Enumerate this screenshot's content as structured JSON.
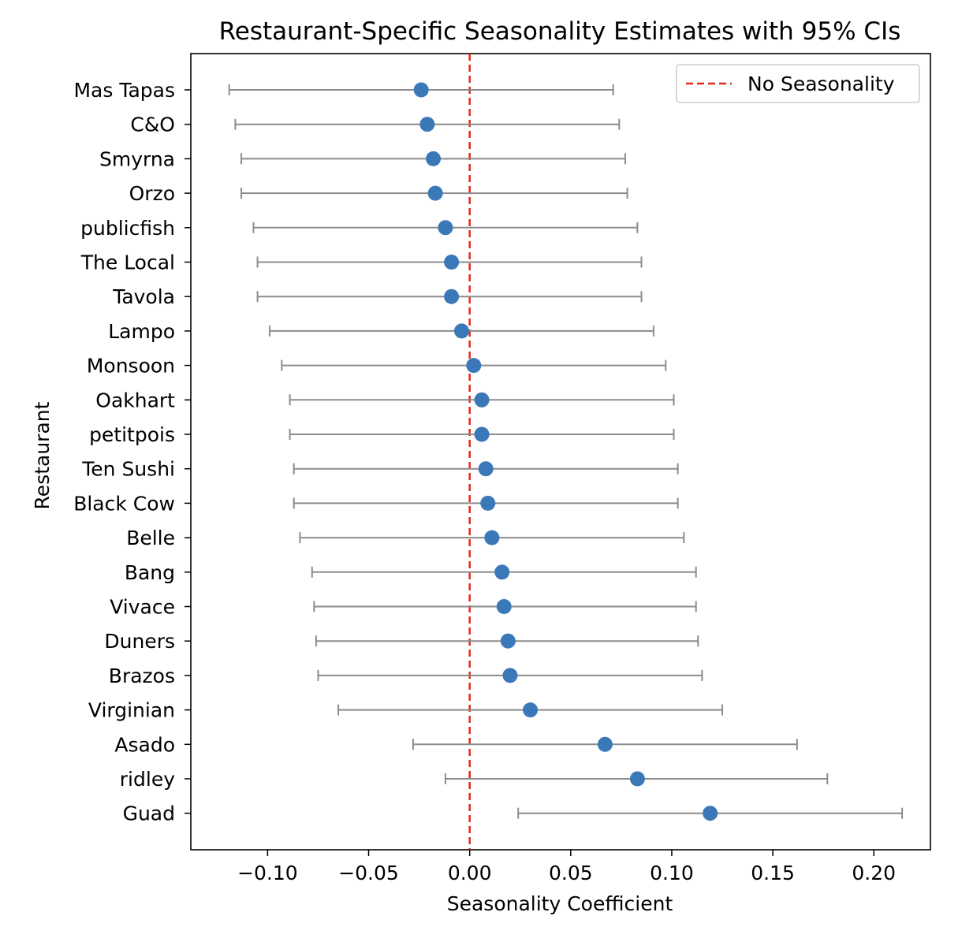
{
  "chart_data": {
    "type": "scatter",
    "title": "Restaurant-Specific Seasonality Estimates with 95% CIs",
    "xlabel": "Seasonality Coefficient",
    "ylabel": "Restaurant",
    "xlim": [
      -0.138,
      0.228
    ],
    "xticks": [
      -0.1,
      -0.05,
      0.0,
      0.05,
      0.1,
      0.15,
      0.2
    ],
    "xtick_labels": [
      "−0.10",
      "−0.05",
      "0.00",
      "0.05",
      "0.10",
      "0.15",
      "0.20"
    ],
    "grid": false,
    "legend": {
      "placement": "top-right",
      "entries": [
        "No Seasonality"
      ]
    },
    "reference_line": {
      "x": 0.0,
      "label": "No Seasonality",
      "style": "dashed",
      "color": "#e8271c"
    },
    "colors": {
      "point": "#3a78b8",
      "errorbar": "#8c8c8c",
      "reference": "#e8271c"
    },
    "categories": [
      "Mas Tapas",
      "C&O",
      "Smyrna",
      "Orzo",
      "publicfish",
      "The Local",
      "Tavola",
      "Lampo",
      "Monsoon",
      "Oakhart",
      "petitpois",
      "Ten Sushi",
      "Black Cow",
      "Belle",
      "Bang",
      "Vivace",
      "Duners",
      "Brazos",
      "Virginian",
      "Asado",
      "ridley",
      "Guad"
    ],
    "series": [
      {
        "estimate": [
          -0.024,
          -0.021,
          -0.018,
          -0.017,
          -0.012,
          -0.009,
          -0.009,
          -0.004,
          0.002,
          0.006,
          0.006,
          0.008,
          0.009,
          0.011,
          0.016,
          0.017,
          0.019,
          0.02,
          0.03,
          0.067,
          0.083,
          0.119
        ],
        "ci_lower": [
          -0.119,
          -0.116,
          -0.113,
          -0.113,
          -0.107,
          -0.105,
          -0.105,
          -0.099,
          -0.093,
          -0.089,
          -0.089,
          -0.087,
          -0.087,
          -0.084,
          -0.078,
          -0.077,
          -0.076,
          -0.075,
          -0.065,
          -0.028,
          -0.012,
          0.024
        ],
        "ci_upper": [
          0.071,
          0.074,
          0.077,
          0.078,
          0.083,
          0.085,
          0.085,
          0.091,
          0.097,
          0.101,
          0.101,
          0.103,
          0.103,
          0.106,
          0.112,
          0.112,
          0.113,
          0.115,
          0.125,
          0.162,
          0.177,
          0.214
        ]
      }
    ]
  }
}
